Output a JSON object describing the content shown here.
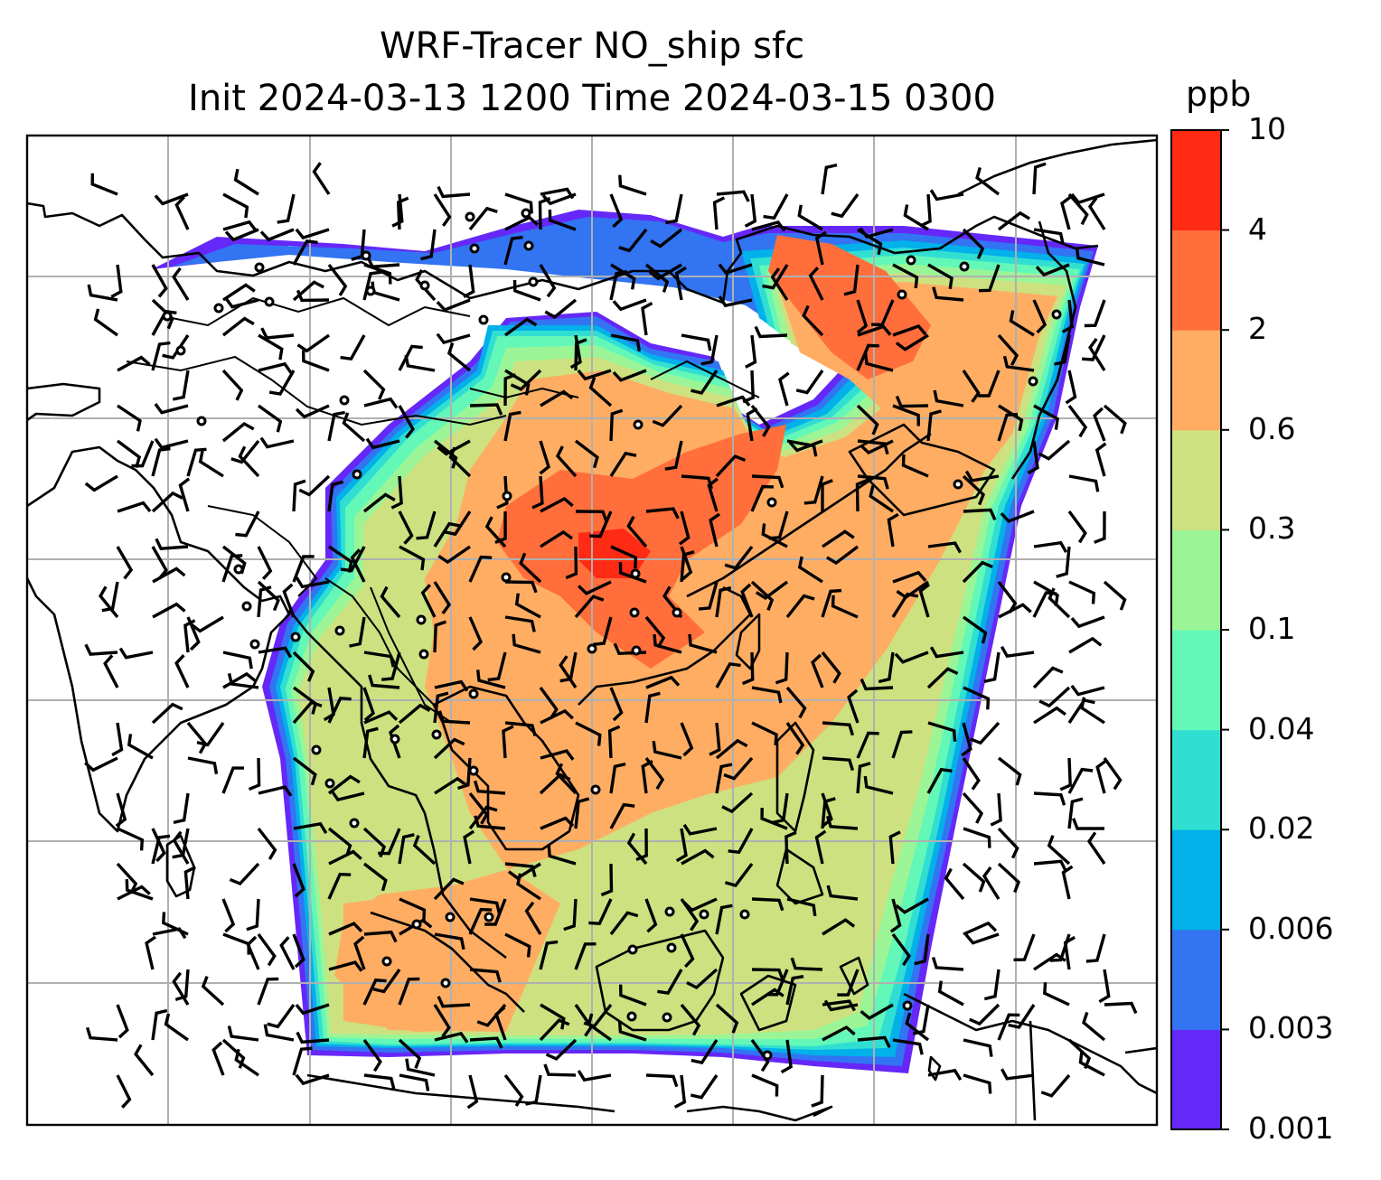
{
  "chart_data": {
    "type": "heatmap",
    "title_line1": "WRF-Tracer NO_ship sfc",
    "title_line2": "Init 2024-03-13 1200 Time 2024-03-15 0300",
    "colorbar": {
      "unit": "ppb",
      "levels": [
        "0.001",
        "0.003",
        "0.006",
        "0.02",
        "0.04",
        "0.1",
        "0.3",
        "0.6",
        "2",
        "4",
        "10"
      ],
      "colors": [
        "#6528f9",
        "#3274f2",
        "#02b0ea",
        "#31dfd2",
        "#63f8b7",
        "#9bf596",
        "#cde180",
        "#ffad63",
        "#ff6e3b",
        "#ff2b14"
      ]
    },
    "overlays": [
      "coastlines",
      "country borders",
      "gridlines",
      "wind barbs"
    ],
    "grid": true
  }
}
